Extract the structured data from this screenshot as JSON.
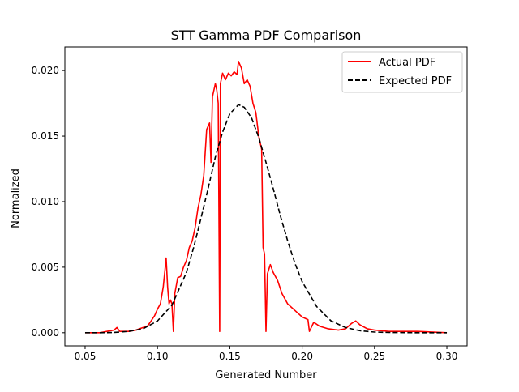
{
  "chart_data": {
    "type": "line",
    "title": "STT Gamma PDF Comparison",
    "xlabel": "Generated Number",
    "ylabel": "Normalized",
    "xlim": [
      0.036,
      0.314
    ],
    "ylim": [
      -0.001,
      0.0218
    ],
    "x_ticks": [
      0.05,
      0.1,
      0.15,
      0.2,
      0.25,
      0.3
    ],
    "x_tick_labels": [
      "0.05",
      "0.10",
      "0.15",
      "0.20",
      "0.25",
      "0.30"
    ],
    "y_ticks": [
      0.0,
      0.005,
      0.01,
      0.015,
      0.02
    ],
    "y_tick_labels": [
      "0.000",
      "0.005",
      "0.010",
      "0.015",
      "0.020"
    ],
    "grid": false,
    "legend_position": "top-right",
    "series": [
      {
        "name": "Actual PDF",
        "color": "#ff0000",
        "style": "solid",
        "points": [
          [
            0.05,
            0.0
          ],
          [
            0.06,
            0.0
          ],
          [
            0.065,
            0.0001
          ],
          [
            0.07,
            0.0002
          ],
          [
            0.072,
            0.0004
          ],
          [
            0.074,
            0.0001
          ],
          [
            0.08,
            0.0001
          ],
          [
            0.085,
            0.0002
          ],
          [
            0.09,
            0.0004
          ],
          [
            0.093,
            0.0005
          ],
          [
            0.095,
            0.0008
          ],
          [
            0.098,
            0.0013
          ],
          [
            0.1,
            0.0018
          ],
          [
            0.102,
            0.0022
          ],
          [
            0.104,
            0.0035
          ],
          [
            0.106,
            0.0057
          ],
          [
            0.107,
            0.0035
          ],
          [
            0.108,
            0.0022
          ],
          [
            0.109,
            0.0025
          ],
          [
            0.11,
            0.0022
          ],
          [
            0.111,
            0.0001
          ],
          [
            0.112,
            0.003
          ],
          [
            0.114,
            0.0042
          ],
          [
            0.116,
            0.0043
          ],
          [
            0.118,
            0.005
          ],
          [
            0.12,
            0.0055
          ],
          [
            0.122,
            0.0065
          ],
          [
            0.124,
            0.007
          ],
          [
            0.126,
            0.008
          ],
          [
            0.128,
            0.0095
          ],
          [
            0.13,
            0.0105
          ],
          [
            0.132,
            0.012
          ],
          [
            0.134,
            0.0155
          ],
          [
            0.136,
            0.016
          ],
          [
            0.137,
            0.013
          ],
          [
            0.138,
            0.018
          ],
          [
            0.14,
            0.019
          ],
          [
            0.141,
            0.0185
          ],
          [
            0.142,
            0.0175
          ],
          [
            0.143,
            0.0001
          ],
          [
            0.1435,
            0.019
          ],
          [
            0.145,
            0.0198
          ],
          [
            0.147,
            0.0193
          ],
          [
            0.149,
            0.0198
          ],
          [
            0.151,
            0.0196
          ],
          [
            0.153,
            0.0199
          ],
          [
            0.155,
            0.0197
          ],
          [
            0.156,
            0.0207
          ],
          [
            0.158,
            0.0202
          ],
          [
            0.16,
            0.019
          ],
          [
            0.162,
            0.0193
          ],
          [
            0.164,
            0.0188
          ],
          [
            0.166,
            0.0175
          ],
          [
            0.168,
            0.0168
          ],
          [
            0.17,
            0.015
          ],
          [
            0.172,
            0.014
          ],
          [
            0.173,
            0.0065
          ],
          [
            0.174,
            0.006
          ],
          [
            0.175,
            0.0001
          ],
          [
            0.176,
            0.0045
          ],
          [
            0.178,
            0.0052
          ],
          [
            0.18,
            0.0046
          ],
          [
            0.183,
            0.004
          ],
          [
            0.186,
            0.003
          ],
          [
            0.19,
            0.0022
          ],
          [
            0.195,
            0.0017
          ],
          [
            0.2,
            0.0012
          ],
          [
            0.204,
            0.001
          ],
          [
            0.205,
            0.0001
          ],
          [
            0.208,
            0.0008
          ],
          [
            0.212,
            0.0005
          ],
          [
            0.218,
            0.0003
          ],
          [
            0.225,
            0.0002
          ],
          [
            0.23,
            0.0003
          ],
          [
            0.234,
            0.0007
          ],
          [
            0.237,
            0.0009
          ],
          [
            0.24,
            0.0006
          ],
          [
            0.245,
            0.0003
          ],
          [
            0.25,
            0.0002
          ],
          [
            0.26,
            0.0001
          ],
          [
            0.28,
            0.0001
          ],
          [
            0.3,
            0.0
          ]
        ]
      },
      {
        "name": "Expected PDF",
        "color": "#000000",
        "style": "dashed",
        "points": [
          [
            0.05,
            0.0
          ],
          [
            0.06,
            0.0
          ],
          [
            0.07,
            2e-05
          ],
          [
            0.08,
            0.0001
          ],
          [
            0.09,
            0.0003
          ],
          [
            0.1,
            0.0009
          ],
          [
            0.11,
            0.0021
          ],
          [
            0.12,
            0.0046
          ],
          [
            0.125,
            0.0065
          ],
          [
            0.13,
            0.0087
          ],
          [
            0.135,
            0.011
          ],
          [
            0.14,
            0.0134
          ],
          [
            0.145,
            0.0153
          ],
          [
            0.15,
            0.0167
          ],
          [
            0.156,
            0.0174
          ],
          [
            0.16,
            0.0172
          ],
          [
            0.165,
            0.0164
          ],
          [
            0.17,
            0.0149
          ],
          [
            0.175,
            0.013
          ],
          [
            0.18,
            0.011
          ],
          [
            0.185,
            0.0089
          ],
          [
            0.19,
            0.007
          ],
          [
            0.195,
            0.0053
          ],
          [
            0.2,
            0.0039
          ],
          [
            0.21,
            0.002
          ],
          [
            0.22,
            0.0009
          ],
          [
            0.23,
            0.0004
          ],
          [
            0.24,
            0.00015
          ],
          [
            0.25,
            5e-05
          ],
          [
            0.26,
            2e-05
          ],
          [
            0.28,
            0.0
          ],
          [
            0.3,
            0.0
          ]
        ]
      }
    ]
  }
}
